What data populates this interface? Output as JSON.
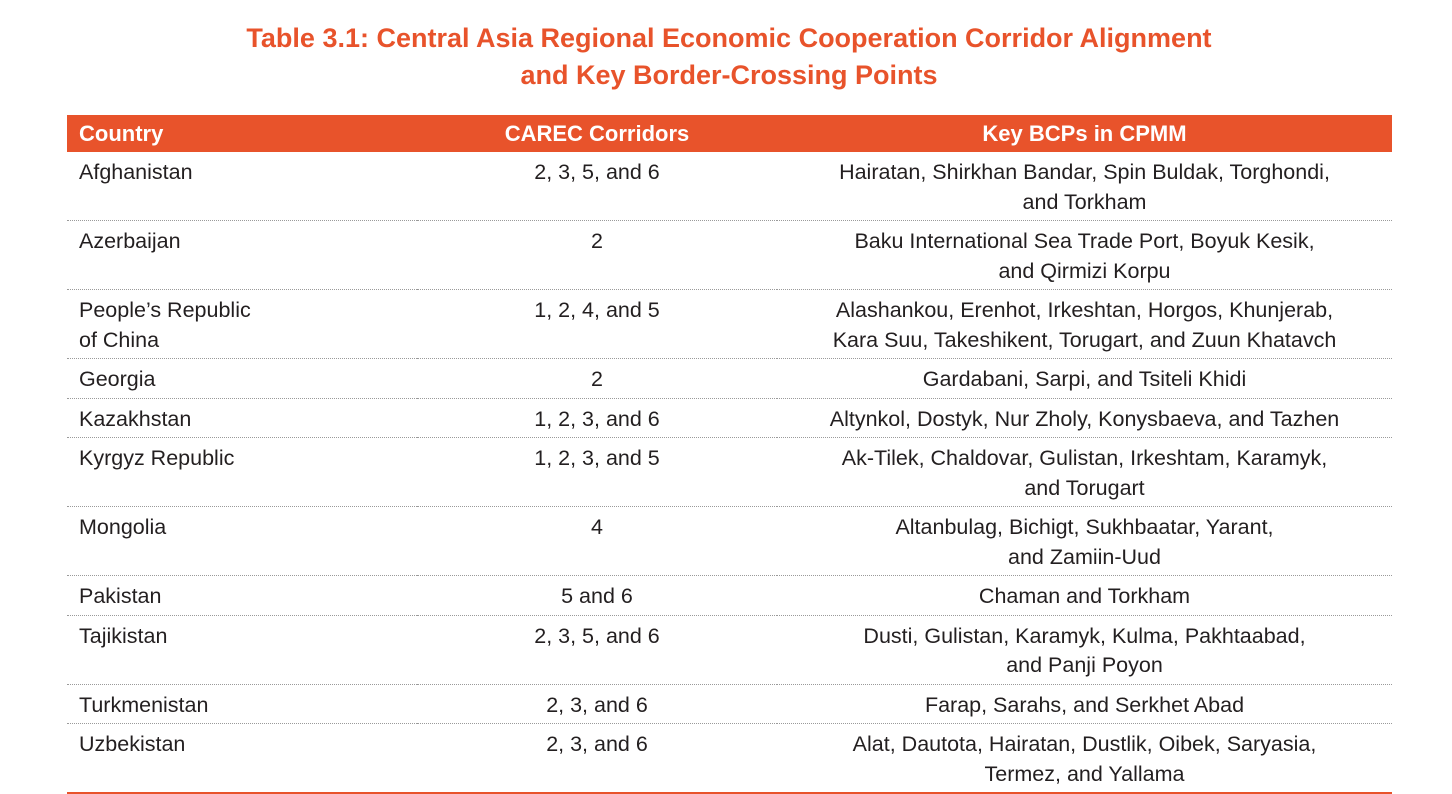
{
  "title": {
    "line1": "Table 3.1: Central Asia Regional Economic Cooperation Corridor Alignment",
    "line2": "and Key Border-Crossing Points"
  },
  "table": {
    "headers": [
      "Country",
      "CAREC Corridors",
      "Key BCPs in CPMM"
    ],
    "rows": [
      {
        "country": [
          "Afghanistan"
        ],
        "corridors": "2, 3, 5, and 6",
        "bcps": [
          "Hairatan, Shirkhan Bandar, Spin Buldak, Torghondi,",
          "and Torkham"
        ]
      },
      {
        "country": [
          "Azerbaijan"
        ],
        "corridors": "2",
        "bcps": [
          "Baku International Sea Trade Port, Boyuk Kesik,",
          "and Qirmizi Korpu"
        ]
      },
      {
        "country": [
          "People’s Republic",
          "of China"
        ],
        "corridors": "1, 2, 4, and 5",
        "bcps": [
          "Alashankou, Erenhot, Irkeshtan, Horgos, Khunjerab,",
          "Kara Suu, Takeshikent, Torugart, and Zuun Khatavch"
        ]
      },
      {
        "country": [
          "Georgia"
        ],
        "corridors": "2",
        "bcps": [
          "Gardabani, Sarpi, and Tsiteli Khidi"
        ]
      },
      {
        "country": [
          "Kazakhstan"
        ],
        "corridors": "1, 2, 3, and 6",
        "bcps": [
          "Altynkol, Dostyk, Nur Zholy, Konysbaeva, and Tazhen"
        ]
      },
      {
        "country": [
          "Kyrgyz Republic"
        ],
        "corridors": "1, 2, 3, and 5",
        "bcps": [
          "Ak-Tilek, Chaldovar, Gulistan, Irkeshtam, Karamyk,",
          "and Torugart"
        ]
      },
      {
        "country": [
          "Mongolia"
        ],
        "corridors": "4",
        "bcps": [
          "Altanbulag, Bichigt, Sukhbaatar, Yarant,",
          "and Zamiin-Uud"
        ]
      },
      {
        "country": [
          "Pakistan"
        ],
        "corridors": "5 and 6",
        "bcps": [
          "Chaman and Torkham"
        ]
      },
      {
        "country": [
          "Tajikistan"
        ],
        "corridors": "2, 3, 5, and 6",
        "bcps": [
          "Dusti, Gulistan, Karamyk, Kulma, Pakhtaabad,",
          "and Panji Poyon"
        ]
      },
      {
        "country": [
          "Turkmenistan"
        ],
        "corridors": "2, 3, and 6",
        "bcps": [
          "Farap, Sarahs, and Serkhet Abad"
        ]
      },
      {
        "country": [
          "Uzbekistan"
        ],
        "corridors": "2, 3, and 6",
        "bcps": [
          "Alat, Dautota, Hairatan, Dustlik, Oibek, Saryasia,",
          "Termez, and Yallama"
        ]
      }
    ]
  }
}
